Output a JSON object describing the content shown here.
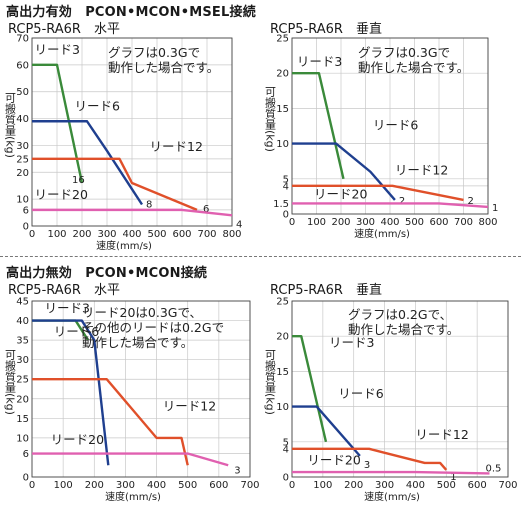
{
  "sections": [
    {
      "title": "高出力有効　PCON•MCON•MSEL接続"
    },
    {
      "title": "高出力無効　PCON•MCON接続"
    }
  ],
  "chart_data": [
    {
      "type": "line",
      "title": "RCP5-RA6R　水平",
      "xlabel": "速度(mm/s)",
      "ylabel": "可搬質量(kg)",
      "xlim": [
        0,
        800
      ],
      "ylim": [
        0,
        70
      ],
      "xticks": [
        0,
        100,
        200,
        300,
        400,
        500,
        600,
        700,
        800
      ],
      "yticks": [
        0,
        6,
        10,
        20,
        25,
        30,
        40,
        50,
        60,
        70
      ],
      "grid": true,
      "note": [
        "グラフは0.3Gで",
        "動作した場合です。"
      ],
      "series": [
        {
          "name": "リード3",
          "color": "#3a8a3a",
          "end_label": "16",
          "points": [
            [
              0,
              60
            ],
            [
              100,
              60
            ],
            [
              200,
              16
            ]
          ]
        },
        {
          "name": "リード6",
          "color": "#1f3f8f",
          "end_label": "8",
          "points": [
            [
              0,
              39
            ],
            [
              220,
              39
            ],
            [
              300,
              28
            ],
            [
              440,
              8
            ]
          ]
        },
        {
          "name": "リード12",
          "color": "#e0502a",
          "end_label": "6",
          "points": [
            [
              0,
              25
            ],
            [
              350,
              25
            ],
            [
              400,
              16
            ],
            [
              660,
              6
            ]
          ]
        },
        {
          "name": "リード20",
          "color": "#e060b0",
          "end_label": "4",
          "points": [
            [
              0,
              6
            ],
            [
              600,
              6
            ],
            [
              800,
              4
            ]
          ]
        }
      ]
    },
    {
      "type": "line",
      "title": "RCP5-RA6R　垂直",
      "xlabel": "速度(mm/s)",
      "ylabel": "可搬質量(kg)",
      "xlim": [
        0,
        800
      ],
      "ylim": [
        0,
        25
      ],
      "xticks": [
        0,
        100,
        200,
        300,
        400,
        500,
        600,
        700,
        800
      ],
      "yticks": [
        0,
        1.5,
        4,
        5,
        10,
        15,
        20,
        25
      ],
      "grid": true,
      "note": [
        "グラフは0.3Gで",
        "動作した場合です。"
      ],
      "series": [
        {
          "name": "リード3",
          "color": "#3a8a3a",
          "end_label": "",
          "points": [
            [
              0,
              20
            ],
            [
              110,
              20
            ],
            [
              210,
              5
            ]
          ]
        },
        {
          "name": "リード6",
          "color": "#1f3f8f",
          "end_label": "2",
          "points": [
            [
              0,
              10
            ],
            [
              180,
              10
            ],
            [
              320,
              6
            ],
            [
              420,
              2
            ]
          ]
        },
        {
          "name": "リード12",
          "color": "#e0502a",
          "end_label": "2",
          "points": [
            [
              0,
              4
            ],
            [
              380,
              4
            ],
            [
              410,
              4
            ],
            [
              700,
              2
            ]
          ]
        },
        {
          "name": "リード20",
          "color": "#e060b0",
          "end_label": "1",
          "points": [
            [
              0,
              1.5
            ],
            [
              600,
              1.5
            ],
            [
              800,
              1
            ]
          ]
        }
      ]
    },
    {
      "type": "line",
      "title": "RCP5-RA6R　水平",
      "xlabel": "速度(mm/s)",
      "ylabel": "可搬質量(kg)",
      "xlim": [
        0,
        700
      ],
      "ylim": [
        0,
        45
      ],
      "xticks": [
        0,
        100,
        200,
        300,
        400,
        500,
        600,
        700
      ],
      "yticks": [
        0,
        6,
        10,
        15,
        20,
        25,
        30,
        35,
        40,
        45
      ],
      "grid": true,
      "note": [
        "リード20は0.3Gで、",
        "その他のリードは0.2Gで",
        "動作した場合です。"
      ],
      "series": [
        {
          "name": "リード3",
          "color": "#3a8a3a",
          "end_label": "",
          "points": [
            [
              0,
              40
            ],
            [
              140,
              40
            ],
            [
              180,
              35
            ]
          ]
        },
        {
          "name": "リード6",
          "color": "#1f3f8f",
          "end_label": "",
          "points": [
            [
              0,
              40
            ],
            [
              160,
              40
            ],
            [
              200,
              35
            ],
            [
              245,
              3
            ]
          ]
        },
        {
          "name": "リード12",
          "color": "#e0502a",
          "end_label": "",
          "points": [
            [
              0,
              25
            ],
            [
              240,
              25
            ],
            [
              400,
              10
            ],
            [
              480,
              10
            ],
            [
              500,
              3
            ]
          ]
        },
        {
          "name": "リード20",
          "color": "#e060b0",
          "end_label": "3",
          "points": [
            [
              0,
              6
            ],
            [
              500,
              6
            ],
            [
              630,
              3
            ]
          ]
        }
      ]
    },
    {
      "type": "line",
      "title": "RCP5-RA6R　垂直",
      "xlabel": "速度(mm/s)",
      "ylabel": "可搬質量(kg)",
      "xlim": [
        0,
        700
      ],
      "ylim": [
        0,
        25
      ],
      "xticks": [
        0,
        100,
        200,
        300,
        400,
        500,
        600,
        700
      ],
      "yticks": [
        0,
        4,
        5,
        10,
        15,
        20,
        25
      ],
      "grid": true,
      "note": [
        "グラフは0.2Gで、",
        "動作した場合です。"
      ],
      "series": [
        {
          "name": "リード3",
          "color": "#3a8a3a",
          "end_label": "",
          "points": [
            [
              0,
              20
            ],
            [
              30,
              20
            ],
            [
              110,
              5
            ]
          ]
        },
        {
          "name": "リード6",
          "color": "#1f3f8f",
          "end_label": "3",
          "points": [
            [
              0,
              10
            ],
            [
              80,
              10
            ],
            [
              220,
              3
            ]
          ]
        },
        {
          "name": "リード12",
          "color": "#e0502a",
          "end_label": "1",
          "points": [
            [
              0,
              4
            ],
            [
              250,
              4
            ],
            [
              430,
              2
            ],
            [
              480,
              2
            ],
            [
              500,
              1
            ]
          ]
        },
        {
          "name": "リード20",
          "color": "#e060b0",
          "end_label": "0.5",
          "points": [
            [
              0,
              0.7
            ],
            [
              400,
              0.7
            ],
            [
              640,
              0.5
            ]
          ]
        }
      ]
    }
  ]
}
